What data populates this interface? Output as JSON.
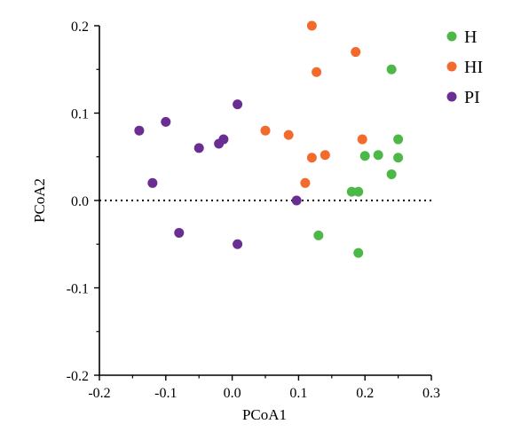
{
  "chart_data": {
    "type": "scatter",
    "title": "",
    "xlabel": "PCoA1",
    "ylabel": "PCoA2",
    "xlim": [
      -0.2,
      0.3
    ],
    "ylim": [
      -0.2,
      0.2
    ],
    "xticks": [
      "-0.2",
      "-0.1",
      "0.0",
      "0.1",
      "0.2",
      "0.3"
    ],
    "yticks": [
      "0.2",
      "0.1",
      "0.0",
      "-0.1",
      "-0.2"
    ],
    "xtick_values": [
      -0.2,
      -0.1,
      0.0,
      0.1,
      0.2,
      0.3
    ],
    "ytick_values": [
      0.2,
      0.1,
      0.0,
      -0.1,
      -0.2
    ],
    "grid": false,
    "reference_line": {
      "axis": "y",
      "value": 0.0,
      "style": "dotted"
    },
    "legend_position": "top-right",
    "series": [
      {
        "name": "H",
        "color": "#4db847",
        "points": [
          [
            0.24,
            0.15
          ],
          [
            0.2,
            0.051
          ],
          [
            0.22,
            0.052
          ],
          [
            0.25,
            0.07
          ],
          [
            0.25,
            0.049
          ],
          [
            0.24,
            0.03
          ],
          [
            0.18,
            0.01
          ],
          [
            0.19,
            0.01
          ],
          [
            0.13,
            -0.04
          ],
          [
            0.19,
            -0.06
          ]
        ]
      },
      {
        "name": "HI",
        "color": "#f26b2c",
        "points": [
          [
            0.12,
            0.2
          ],
          [
            0.186,
            0.17
          ],
          [
            0.127,
            0.147
          ],
          [
            0.05,
            0.08
          ],
          [
            0.085,
            0.075
          ],
          [
            0.196,
            0.07
          ],
          [
            0.12,
            0.049
          ],
          [
            0.14,
            0.052
          ],
          [
            0.11,
            0.02
          ]
        ]
      },
      {
        "name": "PI",
        "color": "#6a2d91",
        "points": [
          [
            -0.14,
            0.08
          ],
          [
            -0.1,
            0.09
          ],
          [
            0.008,
            0.11
          ],
          [
            -0.05,
            0.06
          ],
          [
            -0.013,
            0.07
          ],
          [
            -0.02,
            0.065
          ],
          [
            -0.12,
            0.02
          ],
          [
            0.097,
            0.0
          ],
          [
            -0.08,
            -0.037
          ],
          [
            0.008,
            -0.05
          ]
        ]
      }
    ]
  }
}
